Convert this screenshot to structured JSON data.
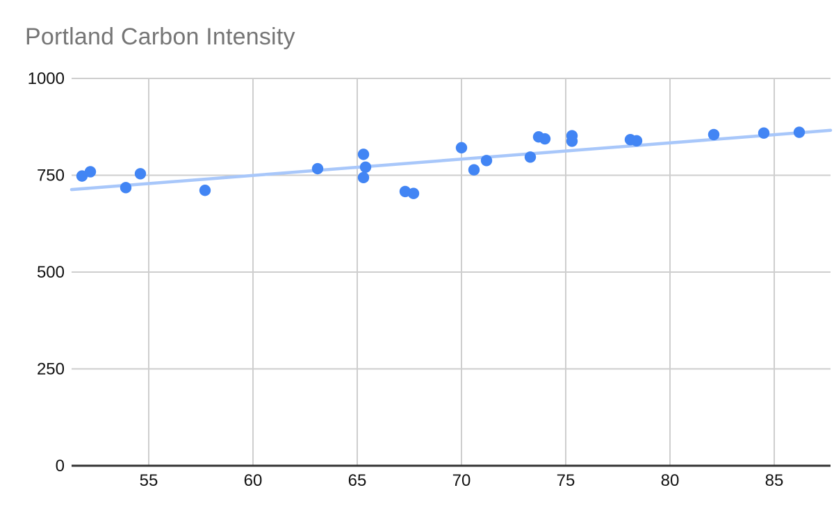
{
  "chart_data": {
    "type": "scatter",
    "title": "Portland Carbon Intensity",
    "xlabel": "",
    "ylabel": "",
    "xlim": [
      51.3,
      87.7
    ],
    "ylim": [
      0,
      1000
    ],
    "x_ticks": [
      55,
      60,
      65,
      70,
      75,
      80,
      85
    ],
    "y_ticks": [
      0,
      250,
      500,
      750,
      1000
    ],
    "grid": true,
    "legend": "none",
    "series": [
      {
        "name": "Carbon Intensity",
        "points": [
          [
            51.8,
            748
          ],
          [
            52.2,
            759
          ],
          [
            53.9,
            718
          ],
          [
            54.6,
            754
          ],
          [
            57.7,
            711
          ],
          [
            63.1,
            767
          ],
          [
            65.3,
            804
          ],
          [
            65.4,
            771
          ],
          [
            65.3,
            744
          ],
          [
            67.3,
            708
          ],
          [
            67.7,
            703
          ],
          [
            70.0,
            821
          ],
          [
            70.6,
            764
          ],
          [
            71.2,
            788
          ],
          [
            73.3,
            797
          ],
          [
            73.7,
            849
          ],
          [
            74.0,
            844
          ],
          [
            75.3,
            852
          ],
          [
            75.3,
            838
          ],
          [
            78.1,
            842
          ],
          [
            78.4,
            839
          ],
          [
            82.1,
            855
          ],
          [
            84.5,
            859
          ],
          [
            86.2,
            861
          ]
        ]
      }
    ],
    "trendline": {
      "x1": 51.3,
      "y1": 713,
      "x2": 87.7,
      "y2": 866
    },
    "colors": {
      "point": "#4285f4",
      "trend": "#a8c7fa",
      "grid": "#cecece",
      "axis": "#333333",
      "tick_label": "#111111",
      "title": "#757575"
    },
    "point_radius": 8.2
  }
}
